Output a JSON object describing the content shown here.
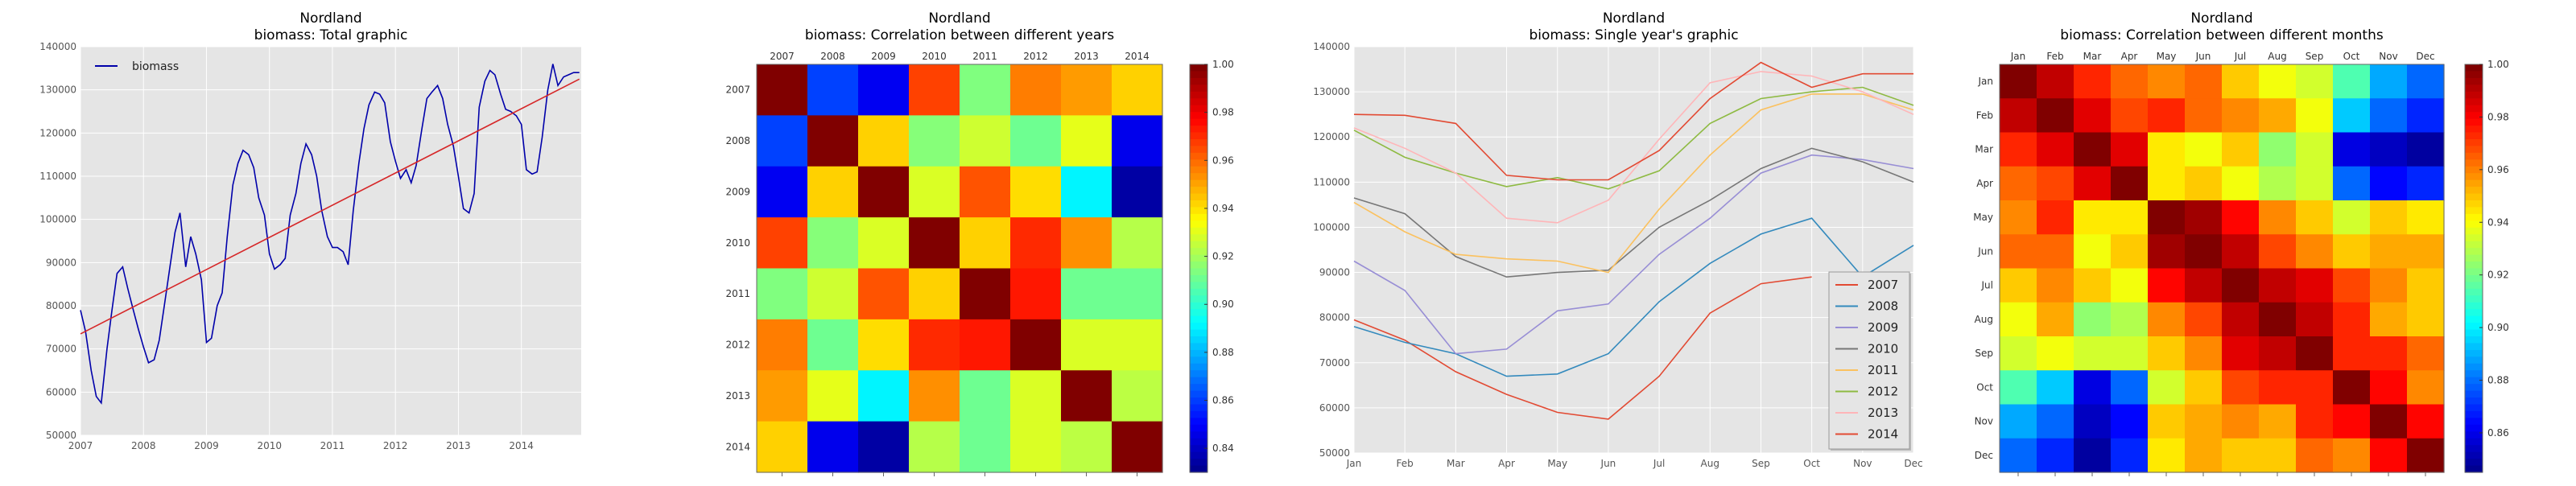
{
  "chart_data": [
    {
      "type": "line",
      "title": [
        "Nordland",
        "biomass: Total graphic"
      ],
      "xlabel": "",
      "ylabel": "",
      "xlim": [
        2007,
        2014.95
      ],
      "ylim": [
        50000,
        140000
      ],
      "x_ticks": [
        "2007",
        "2008",
        "2009",
        "2010",
        "2011",
        "2012",
        "2013",
        "2014"
      ],
      "y_ticks": [
        "50000",
        "60000",
        "70000",
        "80000",
        "90000",
        "100000",
        "110000",
        "120000",
        "130000",
        "140000"
      ],
      "grid": true,
      "legend": "top-left",
      "series": [
        {
          "name": "biomass",
          "color": "#0000aa",
          "x": [
            2007.0,
            2007.08,
            2007.17,
            2007.25,
            2007.33,
            2007.42,
            2007.5,
            2007.58,
            2007.67,
            2007.75,
            2007.83,
            2007.92,
            2008.0,
            2008.08,
            2008.17,
            2008.25,
            2008.33,
            2008.42,
            2008.5,
            2008.58,
            2008.67,
            2008.75,
            2008.83,
            2008.92,
            2009.0,
            2009.08,
            2009.17,
            2009.25,
            2009.33,
            2009.42,
            2009.5,
            2009.58,
            2009.67,
            2009.75,
            2009.83,
            2009.92,
            2010.0,
            2010.08,
            2010.17,
            2010.25,
            2010.33,
            2010.42,
            2010.5,
            2010.58,
            2010.67,
            2010.75,
            2010.83,
            2010.92,
            2011.0,
            2011.08,
            2011.17,
            2011.25,
            2011.33,
            2011.42,
            2011.5,
            2011.58,
            2011.67,
            2011.75,
            2011.83,
            2011.92,
            2012.0,
            2012.08,
            2012.17,
            2012.25,
            2012.33,
            2012.42,
            2012.5,
            2012.58,
            2012.67,
            2012.75,
            2012.83,
            2012.92,
            2013.0,
            2013.08,
            2013.17,
            2013.25,
            2013.33,
            2013.42,
            2013.5,
            2013.58,
            2013.67,
            2013.75,
            2013.83,
            2013.92,
            2014.0,
            2014.08,
            2014.17,
            2014.25,
            2014.33,
            2014.42,
            2014.5,
            2014.58,
            2014.67,
            2014.75,
            2014.83,
            2014.92
          ],
          "y": [
            79000,
            74000,
            65000,
            59000,
            57500,
            70000,
            79000,
            87500,
            89000,
            84000,
            79500,
            74500,
            70500,
            66800,
            67500,
            72000,
            80000,
            89000,
            97000,
            101500,
            89000,
            96000,
            92000,
            86000,
            71500,
            72500,
            80000,
            83000,
            96000,
            108000,
            113000,
            116000,
            115000,
            112000,
            105000,
            101000,
            92000,
            88500,
            89500,
            91000,
            101000,
            106000,
            113000,
            117500,
            115000,
            110000,
            102000,
            96000,
            93500,
            93500,
            92500,
            89500,
            102000,
            113000,
            121000,
            126500,
            129500,
            129000,
            127000,
            118000,
            113500,
            109500,
            111500,
            108500,
            112500,
            121000,
            128000,
            129500,
            131000,
            128000,
            122000,
            117000,
            110000,
            102500,
            101500,
            106000,
            126000,
            132000,
            134500,
            133500,
            129000,
            125500,
            125000,
            124000,
            122000,
            111500,
            110500,
            111000,
            119000,
            130000,
            136000,
            131000,
            133000,
            133500,
            134000,
            134000
          ]
        },
        {
          "name": "",
          "color": "#d62728",
          "x": [
            2007.0,
            2014.92
          ],
          "y": [
            73500,
            132500
          ]
        }
      ]
    },
    {
      "type": "heatmap",
      "title": [
        "Nordland",
        "biomass: Correlation between different years"
      ],
      "x_labels": [
        "2007",
        "2008",
        "2009",
        "2010",
        "2011",
        "2012",
        "2013",
        "2014"
      ],
      "y_labels": [
        "2007",
        "2008",
        "2009",
        "2010",
        "2011",
        "2012",
        "2013",
        "2014"
      ],
      "vmin": 0.83,
      "vmax": 1.0,
      "colorbar_ticks": [
        "0.84",
        "0.86",
        "0.88",
        "0.90",
        "0.92",
        "0.94",
        "0.96",
        "0.98",
        "1.00"
      ],
      "values": [
        [
          1.0,
          0.862,
          0.849,
          0.968,
          0.915,
          0.958,
          0.953,
          0.944
        ],
        [
          0.862,
          1.0,
          0.944,
          0.916,
          0.928,
          0.912,
          0.932,
          0.848
        ],
        [
          0.849,
          0.944,
          1.0,
          0.93,
          0.965,
          0.942,
          0.892,
          0.836
        ],
        [
          0.968,
          0.916,
          0.93,
          1.0,
          0.944,
          0.972,
          0.955,
          0.924
        ],
        [
          0.915,
          0.928,
          0.965,
          0.944,
          1.0,
          0.975,
          0.912,
          0.912
        ],
        [
          0.958,
          0.912,
          0.942,
          0.972,
          0.975,
          1.0,
          0.93,
          0.93
        ],
        [
          0.953,
          0.932,
          0.892,
          0.955,
          0.912,
          0.93,
          1.0,
          0.925
        ],
        [
          0.944,
          0.848,
          0.836,
          0.924,
          0.912,
          0.93,
          0.925,
          1.0
        ]
      ]
    },
    {
      "type": "line",
      "title": [
        "Nordland",
        "biomass: Single year's graphic"
      ],
      "categories": [
        "Jan",
        "Feb",
        "Mar",
        "Apr",
        "May",
        "Jun",
        "Jul",
        "Aug",
        "Sep",
        "Oct",
        "Nov",
        "Dec"
      ],
      "ylim": [
        50000,
        140000
      ],
      "y_ticks": [
        "50000",
        "60000",
        "70000",
        "80000",
        "90000",
        "100000",
        "110000",
        "120000",
        "130000",
        "140000"
      ],
      "grid": true,
      "legend": "bottom-right",
      "series": [
        {
          "name": "2007",
          "color": "#e24a33",
          "values": [
            79500,
            75000,
            68000,
            63000,
            59000,
            57500,
            67000,
            81000,
            87500,
            89000,
            null,
            null
          ]
        },
        {
          "name": "2008",
          "color": "#348abd",
          "values": [
            78000,
            74500,
            72000,
            67000,
            67500,
            72000,
            83500,
            92000,
            98500,
            102000,
            89000,
            96000
          ]
        },
        {
          "name": "2009",
          "color": "#988ed5",
          "values": [
            92500,
            86000,
            72000,
            73000,
            81500,
            83000,
            94000,
            102000,
            112000,
            116000,
            115000,
            113000
          ]
        },
        {
          "name": "2010",
          "color": "#777777",
          "values": [
            106500,
            103000,
            93500,
            89000,
            90000,
            90500,
            100000,
            106000,
            113000,
            117500,
            114500,
            110000
          ]
        },
        {
          "name": "2011",
          "color": "#fbc15e",
          "values": [
            105500,
            99000,
            94000,
            93000,
            92500,
            90000,
            104000,
            116000,
            126000,
            129500,
            129500,
            126000
          ]
        },
        {
          "name": "2012",
          "color": "#8eba42",
          "values": [
            121500,
            115500,
            112000,
            109000,
            111000,
            108500,
            112500,
            123000,
            128500,
            130000,
            131000,
            127000
          ]
        },
        {
          "name": "2013",
          "color": "#ffb5b8",
          "values": [
            122000,
            117500,
            112000,
            102000,
            101000,
            106000,
            119500,
            132000,
            134500,
            133500,
            130000,
            125000
          ]
        },
        {
          "name": "2014",
          "color": "#e24a33",
          "values": [
            125000,
            124800,
            123000,
            111500,
            110500,
            110500,
            117000,
            128500,
            136500,
            131000,
            134000,
            134000
          ]
        }
      ]
    },
    {
      "type": "heatmap",
      "title": [
        "Nordland",
        "biomass: Correlation between different months"
      ],
      "x_labels": [
        "Jan",
        "Feb",
        "Mar",
        "Apr",
        "May",
        "Jun",
        "Jul",
        "Aug",
        "Sep",
        "Oct",
        "Nov",
        "Dec"
      ],
      "y_labels": [
        "Jan",
        "Feb",
        "Mar",
        "Apr",
        "May",
        "Jun",
        "Jul",
        "Aug",
        "Sep",
        "Oct",
        "Nov",
        "Dec"
      ],
      "vmin": 0.845,
      "vmax": 1.0,
      "colorbar_ticks": [
        "0.86",
        "0.88",
        "0.90",
        "0.92",
        "0.94",
        "0.96",
        "0.98",
        "1.00"
      ],
      "values": [
        [
          1.0,
          0.99,
          0.975,
          0.965,
          0.96,
          0.965,
          0.95,
          0.94,
          0.935,
          0.915,
          0.89,
          0.88
        ],
        [
          0.99,
          1.0,
          0.985,
          0.97,
          0.975,
          0.965,
          0.96,
          0.955,
          0.94,
          0.895,
          0.88,
          0.87
        ],
        [
          0.975,
          0.985,
          1.0,
          0.985,
          0.945,
          0.94,
          0.95,
          0.925,
          0.935,
          0.86,
          0.855,
          0.85
        ],
        [
          0.965,
          0.97,
          0.985,
          1.0,
          0.945,
          0.95,
          0.94,
          0.93,
          0.935,
          0.88,
          0.865,
          0.87
        ],
        [
          0.96,
          0.975,
          0.945,
          0.945,
          1.0,
          0.995,
          0.98,
          0.96,
          0.95,
          0.935,
          0.95,
          0.945
        ],
        [
          0.965,
          0.965,
          0.94,
          0.95,
          0.995,
          1.0,
          0.99,
          0.97,
          0.96,
          0.95,
          0.955,
          0.955
        ],
        [
          0.95,
          0.96,
          0.95,
          0.94,
          0.98,
          0.99,
          1.0,
          0.99,
          0.985,
          0.97,
          0.96,
          0.95
        ],
        [
          0.94,
          0.955,
          0.925,
          0.93,
          0.96,
          0.97,
          0.99,
          1.0,
          0.99,
          0.975,
          0.955,
          0.95
        ],
        [
          0.935,
          0.94,
          0.935,
          0.935,
          0.95,
          0.96,
          0.985,
          0.99,
          1.0,
          0.975,
          0.975,
          0.965
        ],
        [
          0.915,
          0.895,
          0.86,
          0.88,
          0.935,
          0.95,
          0.97,
          0.975,
          0.975,
          1.0,
          0.98,
          0.96
        ],
        [
          0.89,
          0.88,
          0.855,
          0.865,
          0.95,
          0.955,
          0.96,
          0.955,
          0.975,
          0.98,
          1.0,
          0.98
        ],
        [
          0.88,
          0.87,
          0.85,
          0.87,
          0.945,
          0.955,
          0.95,
          0.95,
          0.965,
          0.96,
          0.98,
          1.0
        ]
      ]
    }
  ]
}
